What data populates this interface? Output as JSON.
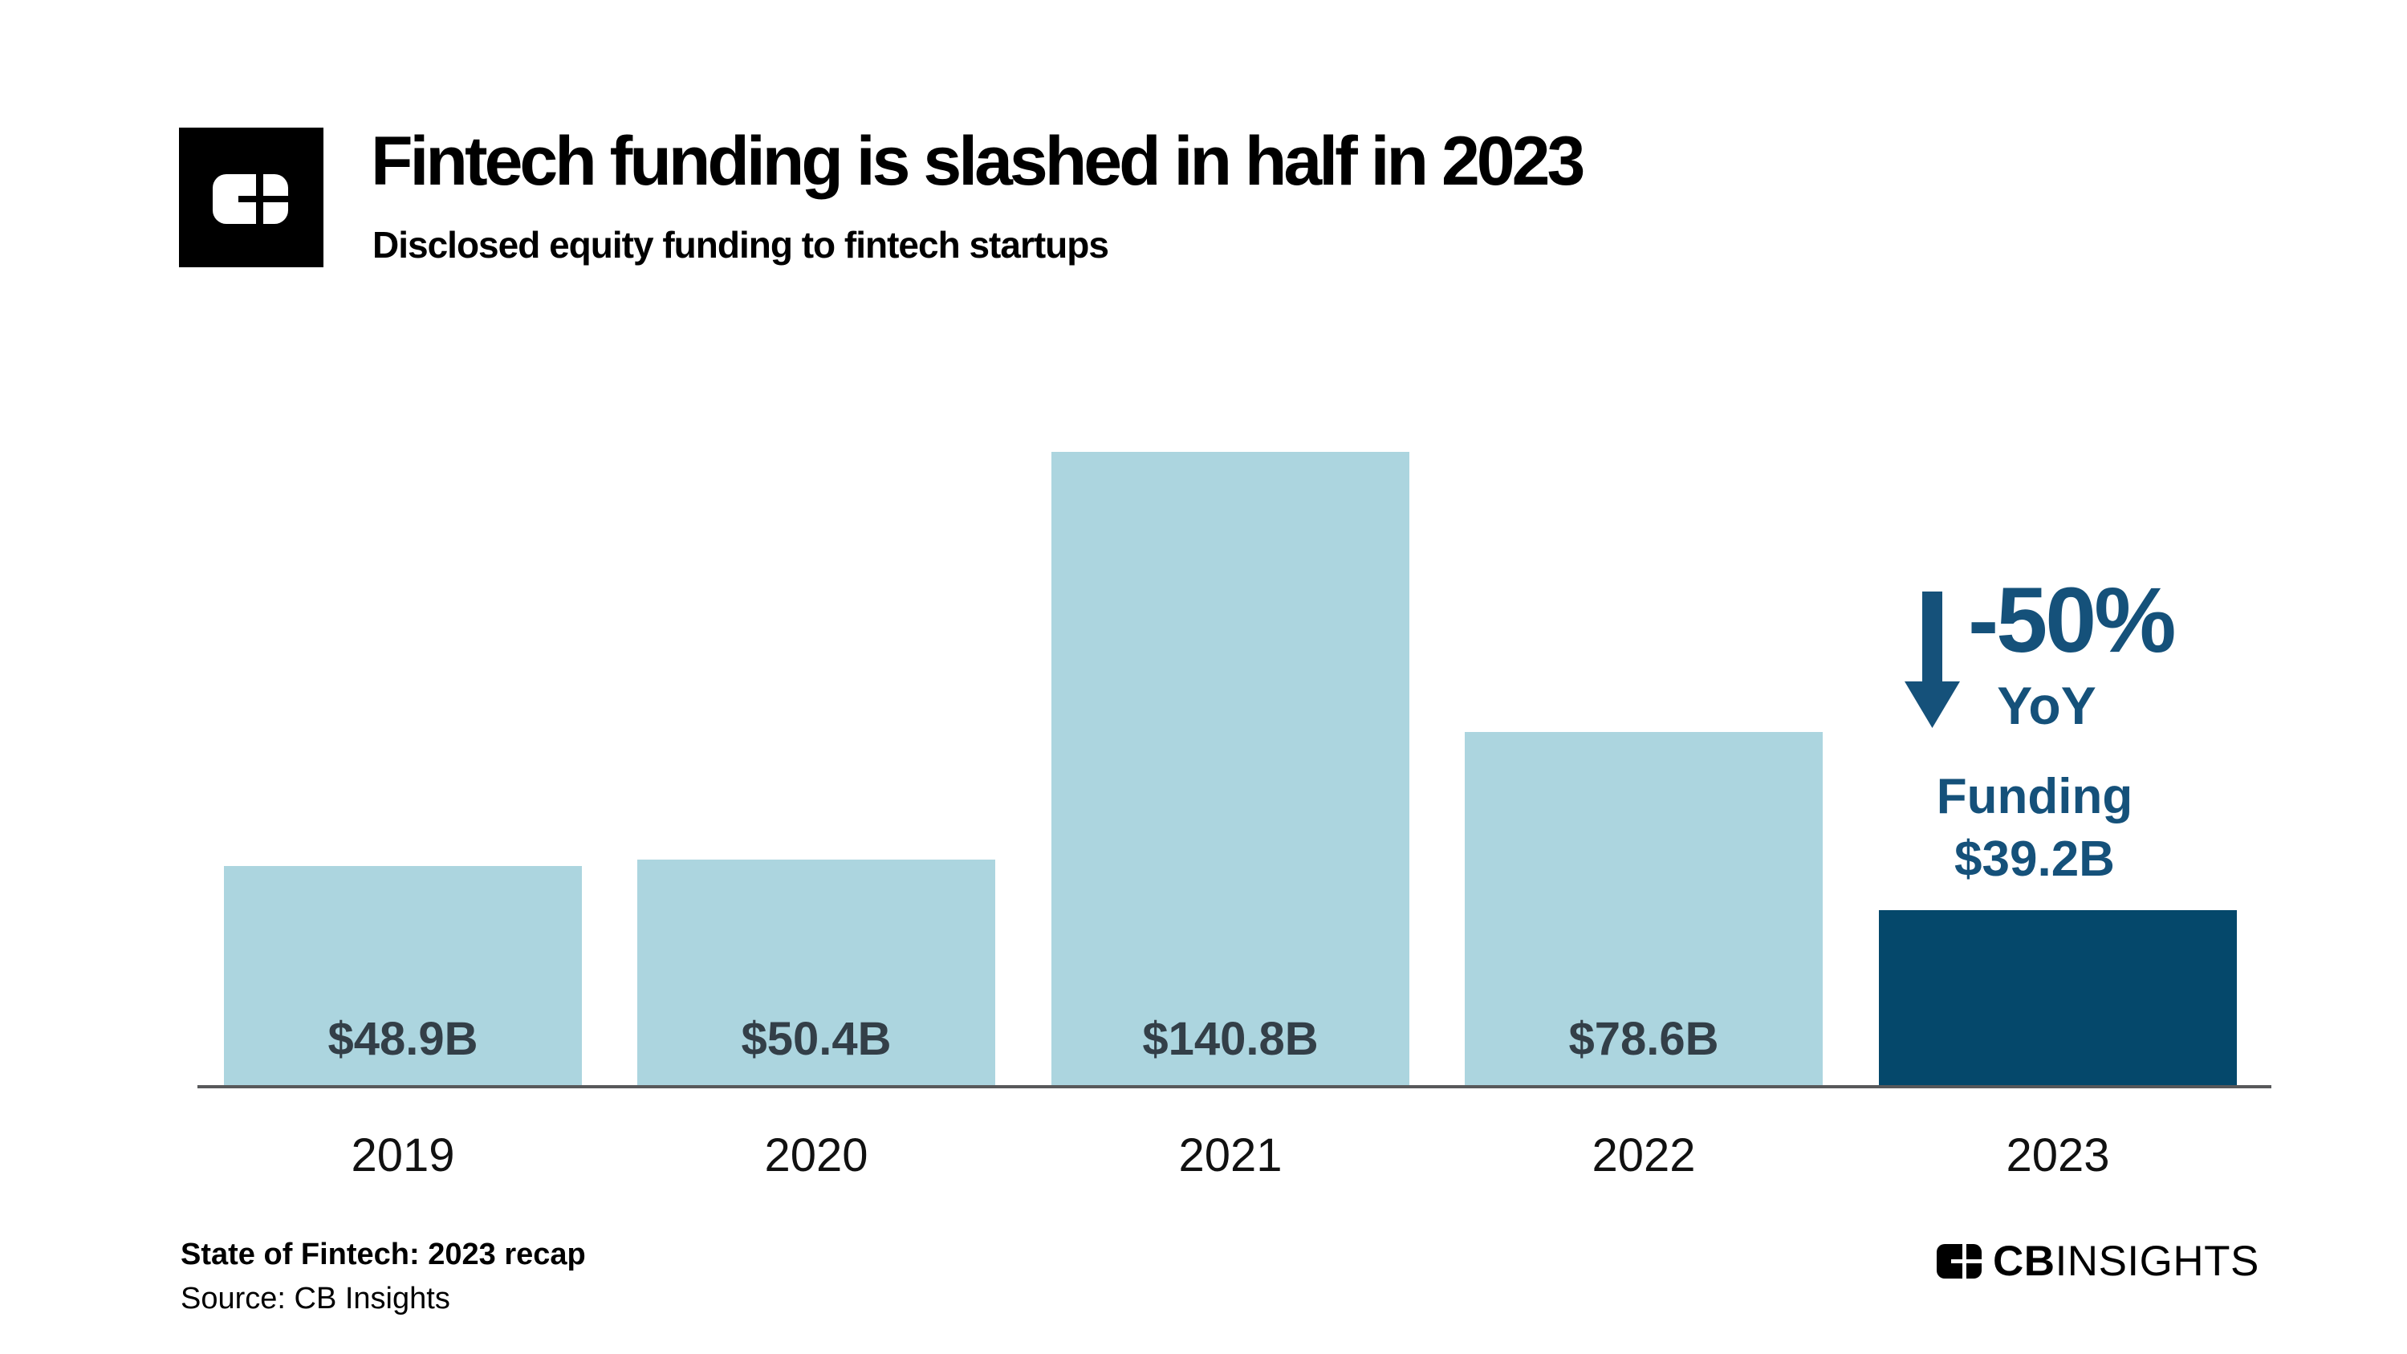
{
  "header": {
    "title": "Fintech funding is slashed in half in 2023",
    "subtitle": "Disclosed equity funding to fintech startups"
  },
  "chart_data": {
    "type": "bar",
    "title": "Fintech funding is slashed in half in 2023",
    "subtitle": "Disclosed equity funding to fintech startups",
    "categories": [
      "2019",
      "2020",
      "2021",
      "2022",
      "2023"
    ],
    "values": [
      48.9,
      50.4,
      140.8,
      78.6,
      39.2
    ],
    "value_labels": [
      "$48.9B",
      "$50.4B",
      "$140.8B",
      "$78.6B",
      ""
    ],
    "xlabel": "",
    "ylabel": "",
    "ylim": [
      0,
      150
    ],
    "grid": false,
    "legend": false,
    "bar_colors": [
      "#ACD5DF",
      "#ACD5DF",
      "#ACD5DF",
      "#ACD5DF",
      "#05486B"
    ],
    "highlight_index": 4,
    "annotation": {
      "percent": "-50%",
      "period": "YoY",
      "funding_label": "Funding",
      "funding_value": "$39.2B"
    }
  },
  "footer": {
    "report_title": "State of Fintech: 2023 recap",
    "source": "Source: CB Insights",
    "brand_cb": "CB",
    "brand_insights": "INSIGHTS"
  },
  "icons": {
    "header_logo": "cb-insights-logo-mark",
    "annotation_arrow": "down-arrow-icon",
    "footer_logo": "cb-insights-logo-mark-small"
  },
  "colors": {
    "background": "#FFFFFF",
    "bar_light": "#ACD5DF",
    "bar_dark": "#05486B",
    "annotation": "#15517A",
    "value_label": "#333F48",
    "axis": "#58595B",
    "text": "#000000"
  }
}
